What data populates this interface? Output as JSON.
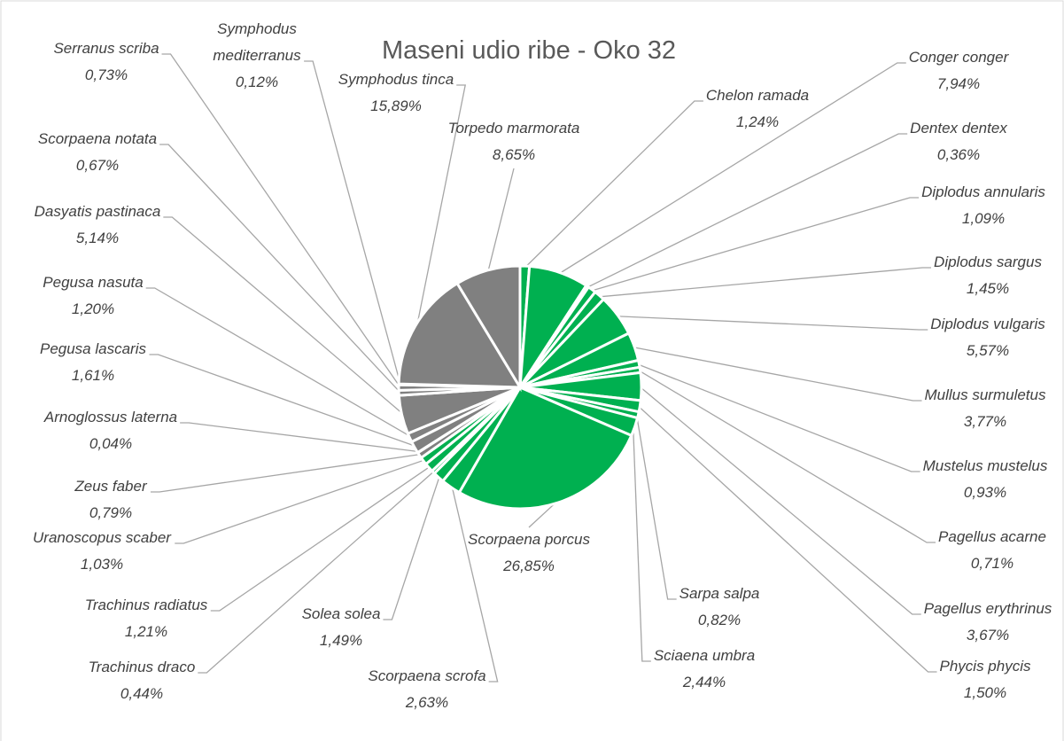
{
  "chart_data": {
    "type": "pie",
    "title": "Maseni udio ribe - Oko 32",
    "categories": [
      "Chelon ramada",
      "Conger conger",
      "Dentex dentex",
      "Diplodus annularis",
      "Diplodus sargus",
      "Diplodus vulgaris",
      "Mullus surmuletus",
      "Mustelus mustelus",
      "Pagellus acarne",
      "Pagellus erythrinus",
      "Phycis phycis",
      "Sarpa salpa",
      "Sciaena umbra",
      "Scorpaena porcus",
      "Scorpaena scrofa",
      "Solea solea",
      "Trachinus draco",
      "Trachinus radiatus",
      "Uranoscopus scaber",
      "Zeus faber",
      "Arnoglossus laterna",
      "Pegusa lascaris",
      "Pegusa nasuta",
      "Dasyatis pastinaca",
      "Scorpaena notata",
      "Serranus scriba",
      "Symphodus mediterranus",
      "Symphodus tinca",
      "Torpedo marmorata"
    ],
    "values": [
      1.24,
      7.94,
      0.36,
      1.09,
      1.45,
      5.57,
      3.77,
      0.93,
      0.71,
      3.67,
      1.5,
      0.82,
      2.44,
      26.85,
      2.63,
      1.49,
      0.44,
      1.21,
      1.03,
      0.79,
      0.04,
      1.61,
      1.2,
      5.14,
      0.67,
      0.73,
      0.12,
      15.89,
      8.65
    ],
    "value_labels": [
      "1,24%",
      "7,94%",
      "0,36%",
      "1,09%",
      "1,45%",
      "5,57%",
      "3,77%",
      "0,93%",
      "0,71%",
      "3,67%",
      "1,50%",
      "0,82%",
      "2,44%",
      "26,85%",
      "2,63%",
      "1,49%",
      "0,44%",
      "1,21%",
      "1,03%",
      "0,79%",
      "0,04%",
      "1,61%",
      "1,20%",
      "5,14%",
      "0,67%",
      "0,73%",
      "0,12%",
      "15,89%",
      "8,65%"
    ],
    "colors": [
      "#00b050",
      "#00b050",
      "#00b050",
      "#00b050",
      "#00b050",
      "#00b050",
      "#00b050",
      "#00b050",
      "#00b050",
      "#00b050",
      "#00b050",
      "#00b050",
      "#00b050",
      "#00b050",
      "#00b050",
      "#00b050",
      "#00b050",
      "#00b050",
      "#00b050",
      "#808080",
      "#808080",
      "#808080",
      "#808080",
      "#808080",
      "#808080",
      "#808080",
      "#808080",
      "#808080",
      "#808080"
    ]
  }
}
